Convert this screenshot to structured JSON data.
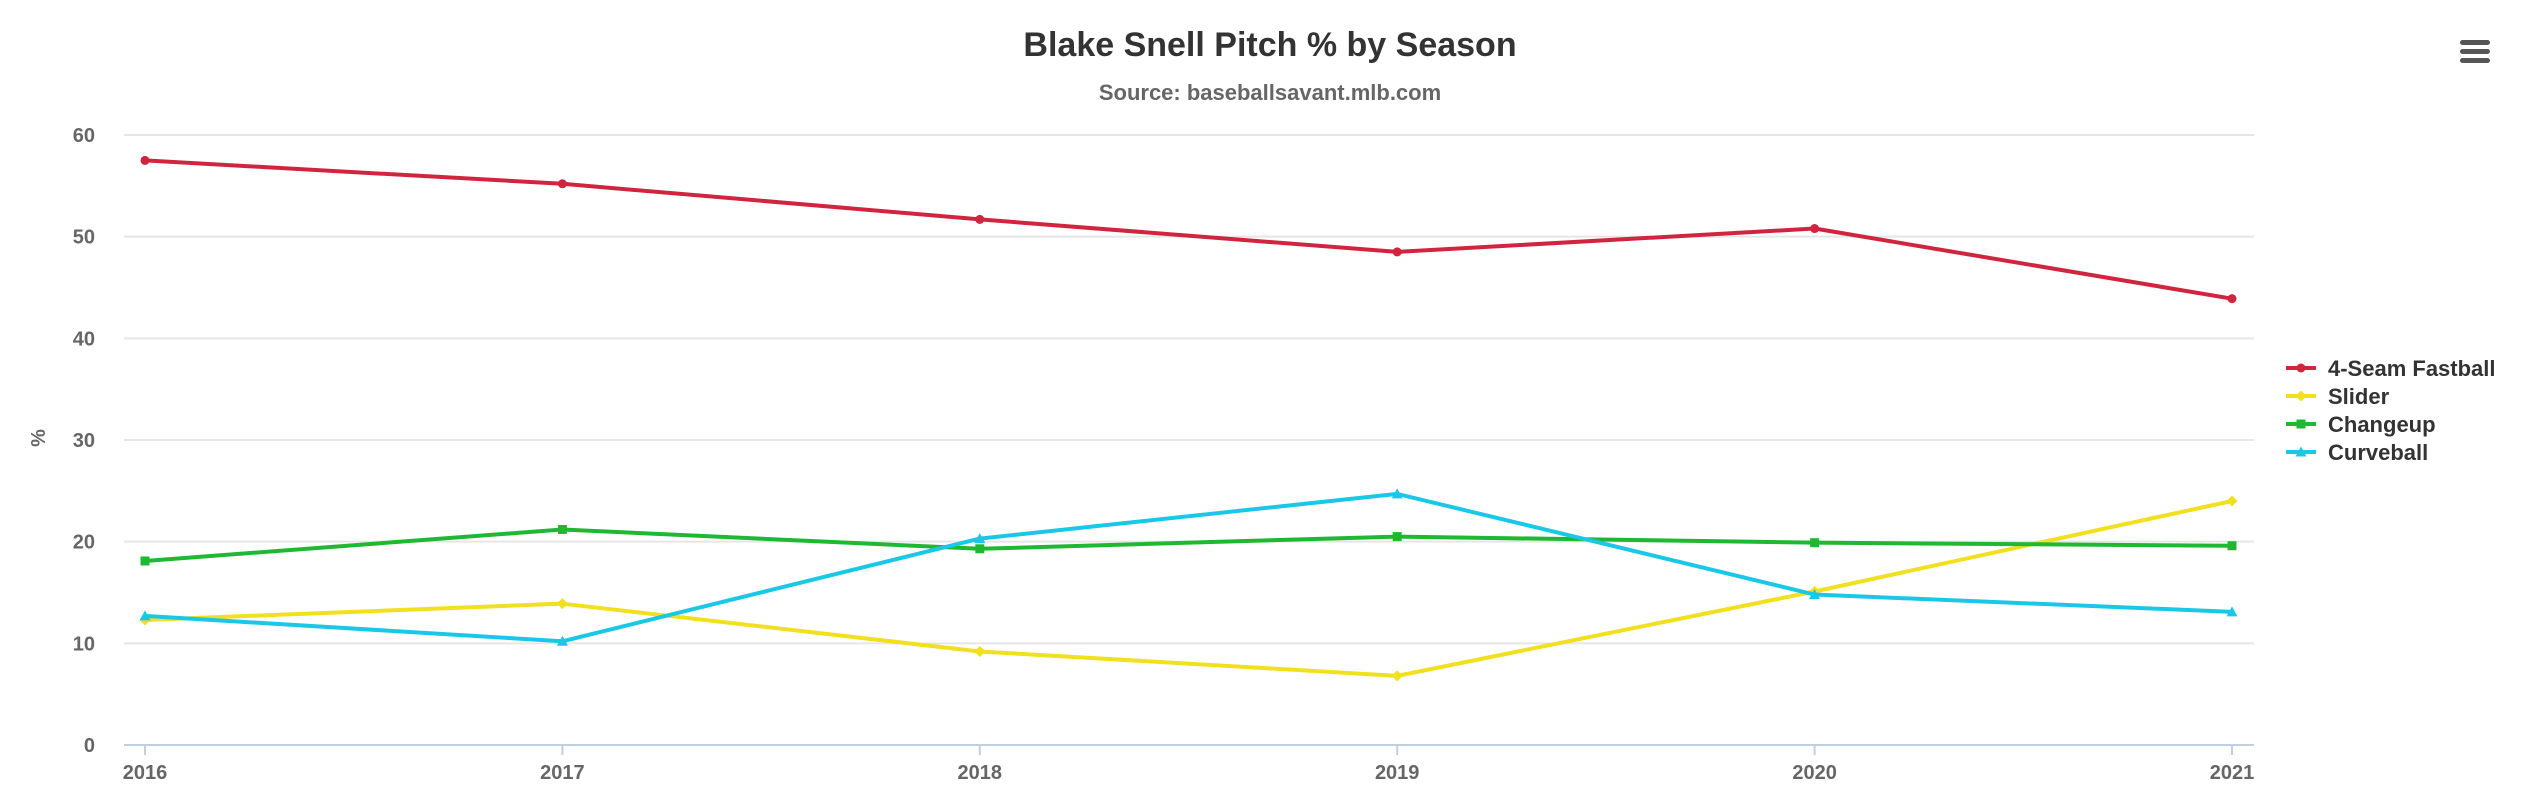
{
  "chart_data": {
    "type": "line",
    "title": "Blake Snell Pitch % by Season",
    "subtitle": "Source: baseballsavant.mlb.com",
    "xlabel": "",
    "ylabel": "%",
    "categories": [
      "2016",
      "2017",
      "2018",
      "2019",
      "2020",
      "2021"
    ],
    "ylim": [
      0,
      60
    ],
    "yticks": [
      "0",
      "10",
      "20",
      "30",
      "40",
      "50",
      "60"
    ],
    "grid": true,
    "legend_position": "right",
    "series": [
      {
        "name": "4-Seam Fastball",
        "color": "#d0243f",
        "marker": "circle",
        "values": [
          57.5,
          55.2,
          51.7,
          48.5,
          50.8,
          43.9
        ]
      },
      {
        "name": "Slider",
        "color": "#f0e01e",
        "marker": "diamond",
        "values": [
          12.3,
          13.9,
          9.2,
          6.8,
          15.1,
          24.0
        ]
      },
      {
        "name": "Changeup",
        "color": "#1fb832",
        "marker": "square",
        "values": [
          18.1,
          21.2,
          19.3,
          20.5,
          19.9,
          19.6
        ]
      },
      {
        "name": "Curveball",
        "color": "#19c8e6",
        "marker": "triangle",
        "values": [
          12.7,
          10.2,
          20.3,
          24.7,
          14.8,
          13.1
        ]
      }
    ]
  },
  "menu": {
    "icon": "hamburger-menu-icon"
  }
}
